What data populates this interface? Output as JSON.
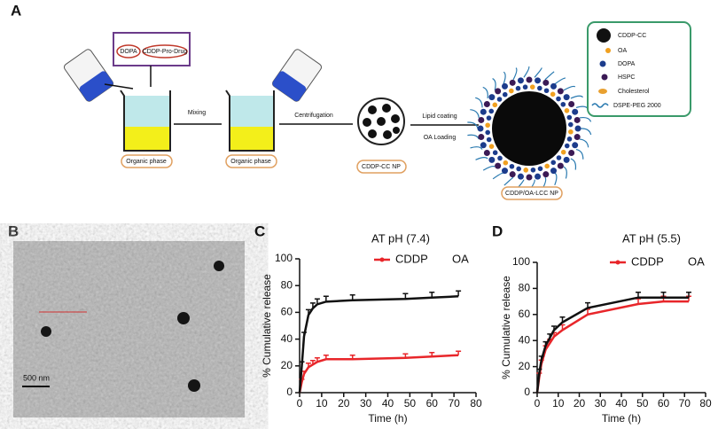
{
  "schematic": {
    "panel_label": "A",
    "box_items": [
      "DOPA",
      "CDDP-Pro-Drug"
    ],
    "beaker_labels": [
      "Organic phase",
      "Organic phase"
    ],
    "steps": [
      "Mixing",
      "Centrifugation",
      "Lipid coating",
      "OA Loading"
    ],
    "particles": [
      "CDDP-CC NP",
      "CDDP/OA-LCC NP"
    ],
    "legend": [
      "CDDP-CC",
      "OA",
      "DOPA",
      "HSPC",
      "Cholesterol",
      "DSPE-PEG 2000"
    ]
  },
  "tem": {
    "panel_label": "B",
    "scale_bar": "500 nm"
  },
  "chart_data": [
    {
      "type": "line",
      "panel_label": "C",
      "title": "AT pH (7.4)",
      "x_label": "Time (h)",
      "y_label": "% Cumulative release",
      "x": [
        0,
        1,
        2,
        4,
        6,
        8,
        12,
        24,
        48,
        60,
        72
      ],
      "series": [
        {
          "name": "CDDP",
          "color": "#e8262a",
          "values": [
            0,
            8,
            14,
            19,
            21,
            23,
            25,
            25,
            26,
            27,
            28
          ],
          "errors": [
            0,
            2,
            2,
            3,
            3,
            3,
            3,
            3,
            3,
            3,
            3
          ]
        },
        {
          "name": "OA",
          "color": "#111111",
          "values": [
            0,
            20,
            42,
            58,
            63,
            66,
            68,
            69,
            70,
            71,
            72
          ],
          "errors": [
            0,
            3,
            3,
            4,
            4,
            4,
            4,
            4,
            4,
            4,
            4
          ]
        }
      ],
      "xlim": [
        0,
        80
      ],
      "xticks": [
        0,
        10,
        20,
        30,
        40,
        50,
        60,
        70,
        80
      ],
      "ylim": [
        0,
        100
      ],
      "yticks": [
        0,
        20,
        40,
        60,
        80,
        100
      ]
    },
    {
      "type": "line",
      "panel_label": "D",
      "title": "AT pH (5.5)",
      "x_label": "Time (h)",
      "y_label": "% Cumulative release",
      "x": [
        0,
        1,
        2,
        4,
        6,
        8,
        12,
        24,
        48,
        60,
        72
      ],
      "series": [
        {
          "name": "CDDP",
          "color": "#e8262a",
          "values": [
            0,
            12,
            22,
            33,
            38,
            43,
            48,
            60,
            68,
            70,
            70
          ],
          "errors": [
            0,
            3,
            3,
            3,
            3,
            3,
            4,
            4,
            4,
            4,
            4
          ]
        },
        {
          "name": "OA",
          "color": "#111111",
          "values": [
            0,
            15,
            25,
            36,
            42,
            48,
            54,
            65,
            73,
            73,
            73
          ],
          "errors": [
            0,
            3,
            3,
            3,
            3,
            3,
            4,
            4,
            4,
            4,
            4
          ]
        }
      ],
      "xlim": [
        0,
        80
      ],
      "xticks": [
        0,
        10,
        20,
        30,
        40,
        50,
        60,
        70,
        80
      ],
      "ylim": [
        0,
        100
      ],
      "yticks": [
        0,
        20,
        40,
        60,
        80,
        100
      ]
    }
  ]
}
